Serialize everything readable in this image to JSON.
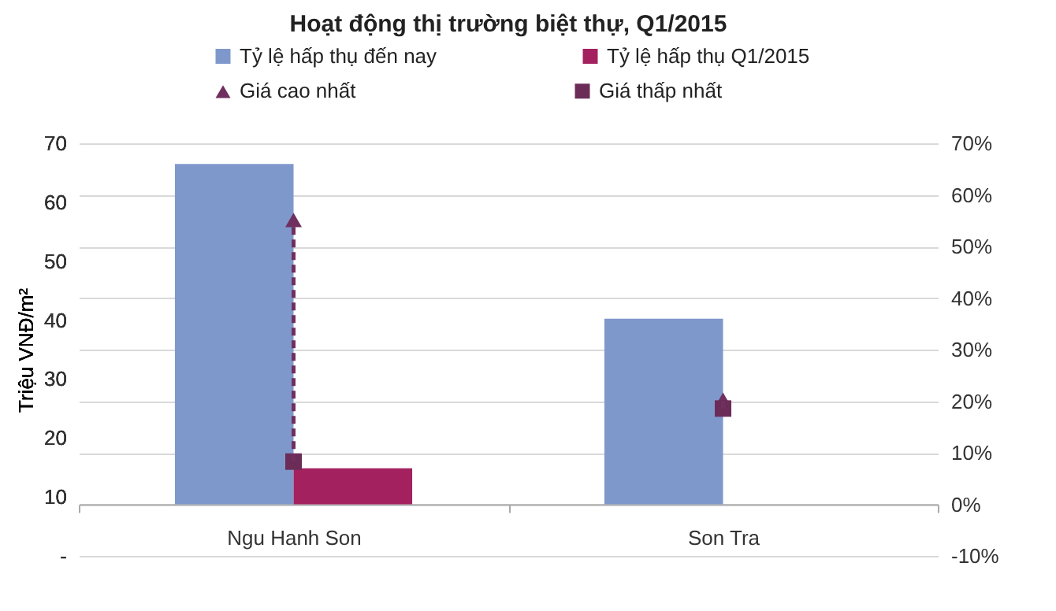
{
  "chart_data": {
    "type": "bar",
    "title": "Hoạt động thị trường biệt thự, Q1/2015",
    "ylabel": "Triệu VNĐ/m²",
    "categories": [
      "Ngu Hanh Son",
      "Son Tra"
    ],
    "series": [
      {
        "name": "Tỷ lệ hấp thụ đến nay",
        "axis": "y2",
        "color": "#7f98cc",
        "values": [
          66,
          36
        ]
      },
      {
        "name": "Tỷ lệ hấp thụ Q1/2015",
        "axis": "y2",
        "color": "#a3215f",
        "values": [
          7,
          0
        ]
      },
      {
        "name": "Giá cao nhất",
        "type": "scatter",
        "axis": "y",
        "marker": "triangle",
        "color": "#6f2f5f",
        "values": [
          57,
          26.5
        ]
      },
      {
        "name": "Giá thấp nhất",
        "type": "scatter",
        "axis": "y",
        "marker": "square",
        "color": "#6b2d58",
        "values": [
          16,
          25
        ]
      },
      {
        "type": "line",
        "axis": "y",
        "line_style": "dashed",
        "color": "#6f2f5f",
        "x": [
          "Ngu Hanh Son",
          "Ngu Hanh Son"
        ],
        "values": [
          16,
          57
        ]
      },
      {
        "type": "line",
        "axis": "y",
        "line_style": "dashed",
        "color": "#6f2f5f",
        "x": [
          "Son Tra",
          "Son Tra"
        ],
        "values": [
          25,
          26.5
        ]
      }
    ],
    "ylim": [
      0,
      70
    ],
    "yticks": [
      {
        "value": 0,
        "label": "-"
      },
      10,
      20,
      30,
      40,
      50,
      60,
      70
    ],
    "y2lim": [
      -10,
      70
    ],
    "y2ticks": [
      {
        "value": -10,
        "label": "-10%"
      },
      {
        "value": 0,
        "label": "0%"
      },
      {
        "value": 10,
        "label": "10%"
      },
      {
        "value": 20,
        "label": "20%"
      },
      {
        "value": 30,
        "label": "30%"
      },
      {
        "value": 40,
        "label": "40%"
      },
      {
        "value": 50,
        "label": "50%"
      },
      {
        "value": 60,
        "label": "60%"
      },
      {
        "value": 70,
        "label": "70%"
      }
    ],
    "grid": "y2",
    "legend": "top"
  }
}
